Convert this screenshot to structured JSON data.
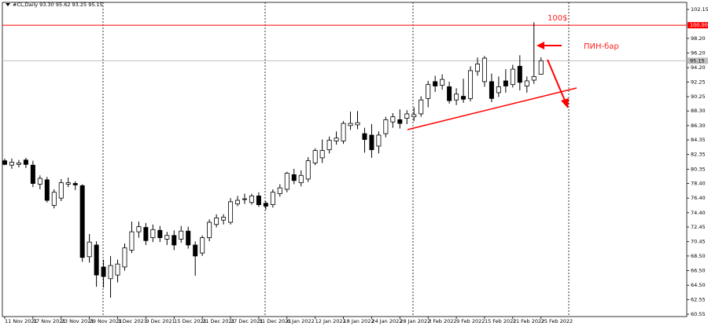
{
  "chart_data": {
    "type": "candlestick",
    "title": "#CL,Daily  93.30 95.62 93.25 95.15",
    "categories": [
      "11 Nov 2021",
      null,
      null,
      null,
      "17 Nov 2021",
      null,
      null,
      null,
      "23 Nov 2021",
      null,
      null,
      null,
      "29 Nov 2021",
      null,
      null,
      null,
      "3 Dec 2021",
      null,
      null,
      null,
      "9 Dec 2021",
      null,
      null,
      null,
      "15 Dec 2021",
      null,
      null,
      null,
      "21 Dec 2021",
      null,
      null,
      null,
      "27 Dec 2021",
      null,
      null,
      null,
      "31 Dec 2021",
      null,
      null,
      null,
      "6 Jan 2022",
      null,
      null,
      null,
      "12 Jan 2022",
      null,
      null,
      null,
      "18 Jan 2022",
      null,
      null,
      null,
      "24 Jan 2022",
      null,
      null,
      null,
      "28 Jan 2022",
      null,
      null,
      null,
      "3 Feb 2022",
      null,
      null,
      null,
      "9 Feb 2022",
      null,
      null,
      null,
      "15 Feb 2022",
      null,
      null,
      null,
      "21 Feb 2022",
      null,
      null,
      null,
      "25 Feb 2022"
    ],
    "open": [
      81.5,
      80.9,
      81.0,
      81.6,
      80.9,
      78.3,
      78.9,
      75.4,
      76.4,
      78.3,
      78.4,
      78.1,
      68.4,
      70.0,
      67.0,
      65.4,
      65.9,
      67.0,
      69.3,
      71.8,
      72.4,
      71.0,
      72.0,
      70.8,
      71.3,
      70.8,
      71.9,
      70.0,
      68.9,
      71.0,
      72.8,
      73.4,
      73.1,
      75.6,
      76.2,
      75.8,
      76.7,
      75.7,
      75.5,
      77.0,
      77.6,
      79.6,
      78.5,
      79.0,
      81.2,
      81.9,
      83.0,
      84.2,
      84.2,
      86.3,
      86.4,
      85.2,
      85.0,
      83.5,
      85.2,
      86.8,
      87.1,
      87.3,
      87.5,
      87.9,
      90.0,
      92.3,
      91.8,
      91.6,
      89.8,
      90.3,
      90.0,
      93.7,
      92.3,
      92.3,
      90.8,
      92.4,
      91.9,
      94.4,
      91.7,
      92.5,
      93.3
    ],
    "high": [
      81.8,
      81.8,
      81.6,
      81.9,
      81.5,
      79.5,
      79.3,
      77.6,
      79.0,
      79.2,
      78.7,
      78.3,
      71.5,
      70.5,
      68.0,
      68.5,
      68.0,
      70.2,
      73.2,
      73.2,
      73.0,
      72.8,
      72.6,
      71.8,
      72.0,
      72.6,
      72.5,
      70.5,
      71.3,
      73.5,
      74.2,
      74.2,
      76.4,
      76.7,
      77.0,
      77.0,
      77.2,
      76.0,
      77.6,
      78.3,
      80.0,
      80.4,
      80.2,
      82.0,
      83.2,
      84.4,
      84.8,
      85.5,
      86.9,
      88.2,
      88.3,
      86.0,
      86.5,
      85.5,
      87.5,
      88.0,
      88.5,
      88.4,
      88.8,
      90.3,
      92.4,
      93.1,
      93.3,
      92.3,
      91.4,
      92.7,
      94.4,
      95.6,
      95.8,
      93.4,
      93.0,
      94.0,
      94.6,
      95.9,
      93.0,
      100.4,
      95.62
    ],
    "low": [
      80.9,
      80.4,
      80.6,
      80.5,
      77.9,
      77.6,
      75.8,
      75.0,
      76.0,
      77.9,
      77.5,
      67.7,
      67.6,
      64.3,
      64.2,
      62.8,
      64.9,
      66.5,
      68.9,
      71.0,
      70.0,
      70.4,
      70.4,
      70.0,
      69.3,
      70.3,
      69.5,
      65.8,
      68.5,
      70.5,
      72.4,
      72.8,
      72.8,
      75.3,
      75.6,
      75.5,
      75.2,
      74.8,
      75.1,
      76.6,
      77.2,
      78.3,
      78.0,
      78.6,
      80.9,
      81.2,
      82.5,
      83.7,
      83.8,
      85.7,
      85.8,
      82.6,
      81.9,
      82.5,
      84.7,
      86.0,
      85.9,
      86.5,
      86.9,
      87.5,
      88.8,
      90.9,
      91.2,
      89.3,
      89.1,
      89.4,
      89.6,
      93.1,
      91.6,
      89.5,
      90.2,
      90.8,
      91.5,
      91.1,
      90.8,
      92.0,
      93.25
    ],
    "close": [
      81.0,
      81.3,
      81.2,
      81.0,
      78.4,
      79.1,
      76.1,
      77.2,
      78.5,
      78.5,
      78.2,
      68.3,
      70.4,
      65.9,
      65.7,
      67.2,
      67.4,
      69.6,
      71.8,
      72.5,
      70.6,
      72.1,
      71.0,
      71.3,
      70.0,
      71.9,
      70.0,
      68.5,
      71.0,
      73.1,
      73.7,
      73.8,
      75.9,
      76.1,
      76.3,
      76.7,
      75.5,
      75.3,
      77.2,
      77.8,
      79.8,
      78.8,
      79.5,
      81.5,
      82.9,
      82.9,
      84.3,
      84.6,
      86.6,
      86.6,
      86.7,
      84.4,
      83.0,
      85.0,
      87.1,
      87.5,
      86.6,
      87.9,
      87.8,
      89.8,
      91.9,
      91.7,
      92.6,
      89.7,
      90.6,
      89.9,
      93.8,
      94.7,
      95.5,
      90.0,
      91.6,
      91.7,
      94.0,
      92.2,
      92.4,
      93.0,
      95.15
    ],
    "up_color": "#ffffff",
    "down_color": "#000000",
    "outline_color": "#000000",
    "ylim": [
      60.23,
      103.12
    ],
    "yticks": [
      102.15,
      {
        "value": 98.2,
        "label": "98.20"
      },
      {
        "value": 96.2,
        "label": "96.20"
      },
      {
        "value": 94.2,
        "label": "94.20"
      },
      92.25,
      90.25,
      {
        "value": 88.3,
        "label": "88.30"
      },
      {
        "value": 86.3,
        "label": "86.30"
      },
      84.35,
      82.35,
      80.35,
      {
        "value": 78.4,
        "label": "78.40"
      },
      {
        "value": 76.4,
        "label": "76.40"
      },
      {
        "value": 74.4,
        "label": "74.40"
      },
      72.45,
      70.45,
      {
        "value": 68.5,
        "label": "68.50"
      },
      {
        "value": 66.5,
        "label": "66.50"
      },
      {
        "value": 64.5,
        "label": "64.50"
      },
      62.55,
      60.55
    ],
    "levels": [
      {
        "value": 100,
        "label": "100.00",
        "color": "#ff0000"
      },
      {
        "value": 95.15,
        "color": "#c0c0c0"
      }
    ],
    "annotations": [
      "100$",
      "ПИН-бар"
    ]
  }
}
